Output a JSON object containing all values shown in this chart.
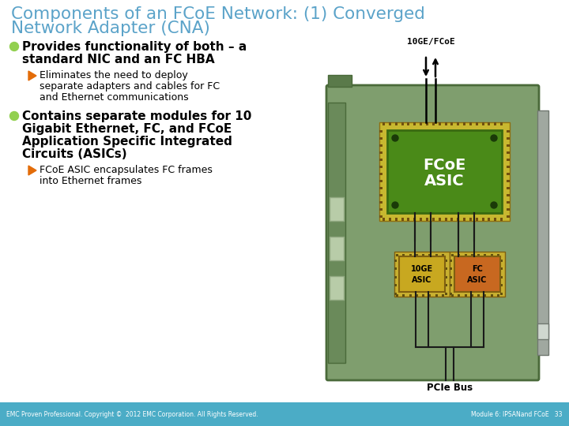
{
  "title_line1": "Components of an FCoE Network: (1) Converged",
  "title_line2": "Network Adapter (CNA)",
  "title_color": "#5ba3c9",
  "bg_color": "#ffffff",
  "footer_bg": "#4bacc6",
  "footer_left": "EMC Proven Professional. Copyright ©  2012 EMC Corporation. All Rights Reserved.",
  "footer_right": "Module 6: IPSANand FCoE   33",
  "bullet_color": "#92d050",
  "arrow_color": "#e36c09",
  "text_color": "#000000",
  "card_color": "#7f9e6e",
  "card_dark": "#4a6a3a",
  "card_shadow": "#3a5a2a",
  "chip_green": "#4a8a18",
  "chip_green_dark": "#3a6a10",
  "chip_yellow": "#c8a820",
  "chip_yellow_dark": "#a08010",
  "chip_orange": "#c86820",
  "chip_border_gold": "#c8b030",
  "slot_color": "#b8cca8",
  "slot_dark": "#90a880",
  "bracket_color": "#a0a8a0",
  "bracket_dark": "#707870",
  "pcie_color": "#5a7a4a",
  "wire_color": "#1a1a1a"
}
